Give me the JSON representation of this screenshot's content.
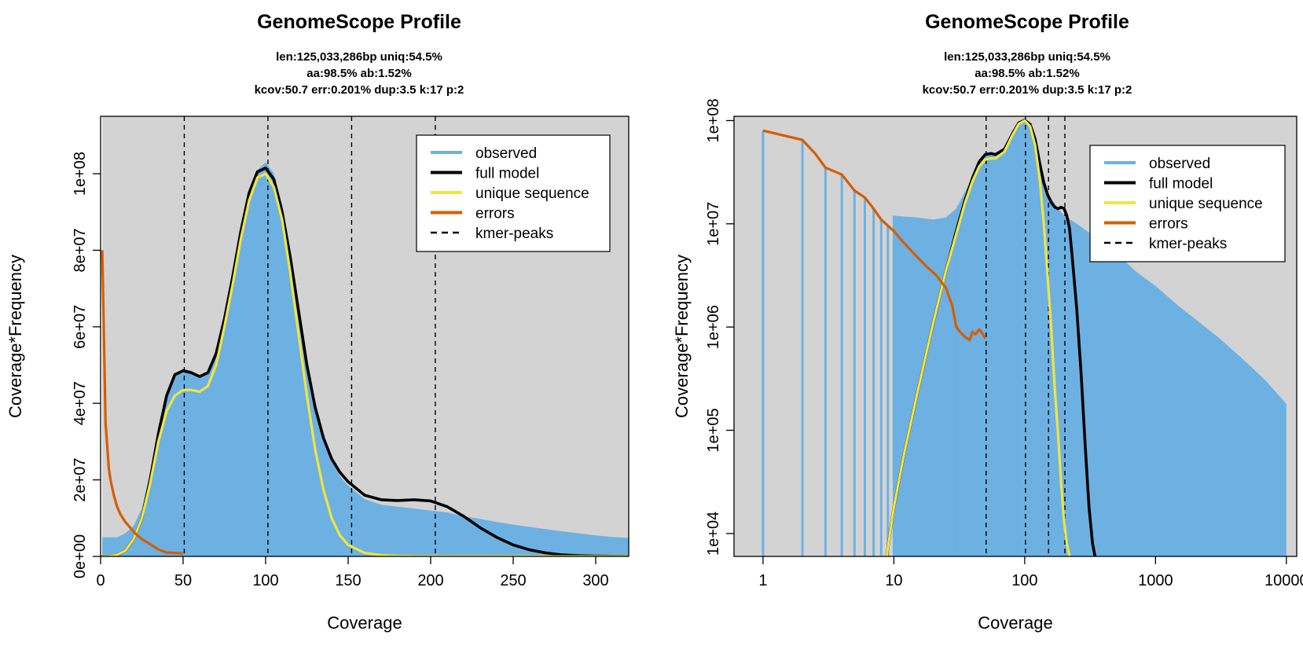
{
  "chart_data": [
    {
      "type": "area",
      "title": "GenomeScope Profile",
      "subtitle": [
        "len:125,033,286bp uniq:54.5%",
        "aa:98.5% ab:1.52%",
        "kcov:50.7 err:0.201%  dup:3.5  k:17 p:2"
      ],
      "xlabel": "Coverage",
      "ylabel": "Coverage*Frequency",
      "xscale": "linear",
      "yscale": "linear",
      "xlim": [
        0,
        320
      ],
      "ylim": [
        0,
        115000000
      ],
      "xticks": [
        0,
        50,
        100,
        150,
        200,
        250,
        300
      ],
      "xtick_labels": [
        "0",
        "50",
        "100",
        "150",
        "200",
        "250",
        "300"
      ],
      "yticks": [
        0,
        20000000,
        40000000,
        60000000,
        80000000,
        100000000
      ],
      "ytick_labels": [
        "0e+00",
        "2e+07",
        "4e+07",
        "6e+07",
        "8e+07",
        "1e+08"
      ],
      "kmer_peaks": [
        50.7,
        101.4,
        152.1,
        202.8
      ],
      "legend": {
        "position": "top-right",
        "entries": [
          "observed",
          "full model",
          "unique sequence",
          "errors",
          "kmer-peaks"
        ]
      },
      "series": [
        {
          "name": "observed",
          "color": "#6db1e2",
          "style": "filled",
          "x": [
            0,
            5,
            10,
            15,
            20,
            25,
            30,
            35,
            40,
            45,
            50,
            55,
            60,
            65,
            70,
            75,
            80,
            85,
            90,
            95,
            100,
            105,
            110,
            115,
            120,
            125,
            130,
            135,
            140,
            145,
            150,
            160,
            170,
            180,
            190,
            200,
            210,
            220,
            230,
            240,
            250,
            260,
            270,
            280,
            290,
            300,
            310,
            320
          ],
          "y": [
            5000000,
            5000000,
            5000000,
            6000000,
            8000000,
            12500000,
            22000000,
            34000000,
            43000000,
            47500000,
            49000000,
            48500000,
            47000000,
            48000000,
            53000000,
            62000000,
            73000000,
            85000000,
            95500000,
            101000000,
            103000000,
            100000000,
            92000000,
            80000000,
            66000000,
            52000000,
            40000000,
            31000000,
            25000000,
            21000000,
            18500000,
            15000000,
            13500000,
            13000000,
            12500000,
            12000000,
            11500000,
            10500000,
            9800000,
            9000000,
            8300000,
            7700000,
            7100000,
            6500000,
            6000000,
            5500000,
            5100000,
            4800000
          ]
        },
        {
          "name": "full model",
          "color": "#000000",
          "x": [
            0,
            5,
            10,
            15,
            20,
            25,
            30,
            35,
            40,
            45,
            50,
            55,
            60,
            65,
            70,
            75,
            80,
            85,
            90,
            95,
            100,
            105,
            110,
            115,
            120,
            125,
            130,
            135,
            140,
            145,
            150,
            160,
            170,
            180,
            190,
            200,
            210,
            220,
            230,
            240,
            250,
            260,
            270,
            280,
            290,
            300,
            310,
            320
          ],
          "y": [
            0,
            0,
            400000,
            1500000,
            4500000,
            10000000,
            20000000,
            32000000,
            42000000,
            47500000,
            48500000,
            48000000,
            47000000,
            48000000,
            53000000,
            62000000,
            73000000,
            85000000,
            95000000,
            100500000,
            101500000,
            98500000,
            90000000,
            78000000,
            64000000,
            50000000,
            39000000,
            31000000,
            25500000,
            22000000,
            19500000,
            16000000,
            14800000,
            14600000,
            14800000,
            14500000,
            13000000,
            10500000,
            7500000,
            5000000,
            3000000,
            1700000,
            900000,
            400000,
            200000,
            100000,
            50000,
            20000
          ]
        },
        {
          "name": "unique sequence",
          "color": "#f0e442",
          "x": [
            0,
            5,
            10,
            15,
            20,
            25,
            30,
            35,
            40,
            45,
            50,
            55,
            60,
            65,
            70,
            75,
            80,
            85,
            90,
            95,
            100,
            105,
            110,
            115,
            120,
            125,
            130,
            135,
            140,
            145,
            150,
            160,
            170,
            180,
            190,
            200,
            210,
            220,
            230,
            240,
            250,
            260,
            270,
            280,
            290,
            300,
            310,
            320
          ],
          "y": [
            0,
            0,
            400000,
            1500000,
            4500000,
            10000000,
            19000000,
            30000000,
            38000000,
            42000000,
            43500000,
            43500000,
            43000000,
            44500000,
            50000000,
            60000000,
            71000000,
            83000000,
            93000000,
            99000000,
            100000000,
            96500000,
            88000000,
            74000000,
            58000000,
            42000000,
            28000000,
            17500000,
            10000000,
            5500000,
            3000000,
            900000,
            300000,
            100000,
            50000,
            20000,
            10000,
            0,
            0,
            0,
            0,
            0,
            0,
            0,
            0,
            0,
            0,
            0
          ]
        },
        {
          "name": "errors",
          "color": "#d55e00",
          "x": [
            1,
            2,
            3,
            4,
            5,
            6,
            8,
            10,
            12,
            15,
            18,
            21,
            25,
            30,
            35,
            40,
            45,
            50
          ],
          "y": [
            80000000,
            58000000,
            35000000,
            29000000,
            23000000,
            20000000,
            16000000,
            13000000,
            11000000,
            9000000,
            7500000,
            6000000,
            4500000,
            3200000,
            1800000,
            1000000,
            900000,
            800000
          ]
        }
      ]
    },
    {
      "type": "area",
      "title": "GenomeScope Profile",
      "subtitle": [
        "len:125,033,286bp uniq:54.5%",
        "aa:98.5% ab:1.52%",
        "kcov:50.7 err:0.201%  dup:3.5  k:17 p:2"
      ],
      "xlabel": "Coverage",
      "ylabel": "Coverage*Frequency",
      "xscale": "log",
      "yscale": "log",
      "xlim": [
        0.6,
        12000
      ],
      "ylim": [
        6000,
        110000000
      ],
      "xticks": [
        1,
        10,
        100,
        1000,
        10000
      ],
      "xtick_labels": [
        "1",
        "10",
        "100",
        "1000",
        "10000"
      ],
      "yticks": [
        10000,
        100000,
        1000000,
        10000000,
        100000000
      ],
      "ytick_labels": [
        "1e+04",
        "1e+05",
        "1e+06",
        "1e+07",
        "1e+08"
      ],
      "kmer_peaks": [
        50.7,
        101.4,
        152.1,
        202.8
      ],
      "legend": {
        "position": "top-right",
        "entries": [
          "observed",
          "full model",
          "unique sequence",
          "errors",
          "kmer-peaks"
        ]
      },
      "series": [
        {
          "name": "observed",
          "color": "#6db1e2",
          "style": "filled",
          "x": [
            10,
            15,
            20,
            25,
            30,
            40,
            50,
            60,
            70,
            80,
            90,
            100,
            110,
            120,
            130,
            140,
            150,
            180,
            200,
            250,
            300,
            400,
            500,
            700,
            1000,
            1500,
            2000,
            3000,
            5000,
            7000,
            10000
          ],
          "y": [
            12000000,
            11500000,
            11000000,
            11500000,
            14000000,
            28000000,
            48000000,
            47000000,
            55000000,
            80000000,
            95000000,
            101000000,
            95000000,
            75000000,
            48000000,
            29000000,
            20000000,
            14000000,
            12000000,
            10000000,
            8500000,
            6500000,
            5200000,
            3500000,
            2500000,
            1600000,
            1200000,
            800000,
            450000,
            300000,
            180000
          ]
        },
        {
          "name": "full model",
          "color": "#000000",
          "x": [
            8.8,
            10,
            12,
            15,
            20,
            25,
            30,
            35,
            40,
            45,
            50,
            55,
            60,
            70,
            80,
            90,
            100,
            110,
            120,
            130,
            140,
            150,
            160,
            170,
            180,
            190,
            200,
            210,
            220,
            230,
            250,
            270,
            290,
            310,
            330,
            345
          ],
          "y": [
            6000,
            18000,
            60000,
            220000,
            1100000,
            3500000,
            8500000,
            17000000,
            28000000,
            40000000,
            47000000,
            48000000,
            47000000,
            53000000,
            73000000,
            95000000,
            101000000,
            92000000,
            66000000,
            39000000,
            25000000,
            19000000,
            16000000,
            14500000,
            14000000,
            14500000,
            14000000,
            12000000,
            9000000,
            5000000,
            1500000,
            350000,
            70000,
            18000,
            8000,
            6000
          ]
        },
        {
          "name": "unique sequence",
          "color": "#f0e442",
          "x": [
            8.8,
            10,
            12,
            15,
            20,
            25,
            30,
            35,
            40,
            45,
            50,
            55,
            60,
            70,
            80,
            90,
            100,
            110,
            120,
            130,
            140,
            150,
            160,
            170,
            180,
            190,
            200,
            210,
            220
          ],
          "y": [
            6000,
            18000,
            60000,
            220000,
            1100000,
            3500000,
            8000000,
            16000000,
            26000000,
            36000000,
            42000000,
            43000000,
            43000000,
            50000000,
            71000000,
            93000000,
            100000000,
            88000000,
            58000000,
            28000000,
            10000000,
            3000000,
            900000,
            250000,
            90000,
            30000,
            13000,
            8000,
            6000
          ]
        },
        {
          "name": "errors",
          "color": "#d55e00",
          "x": [
            1,
            2,
            2.5,
            3,
            4,
            5,
            6,
            7,
            8,
            10,
            12,
            15,
            18,
            21,
            25,
            28,
            30,
            32,
            35,
            38,
            40,
            42,
            45,
            48,
            50
          ],
          "y": [
            80000000,
            65000000,
            48000000,
            35000000,
            30000000,
            21000000,
            18000000,
            14000000,
            11000000,
            8500000,
            6500000,
            4800000,
            3800000,
            3200000,
            2400000,
            1600000,
            1000000,
            900000,
            800000,
            750000,
            900000,
            850000,
            950000,
            850000,
            780000
          ]
        }
      ]
    }
  ]
}
